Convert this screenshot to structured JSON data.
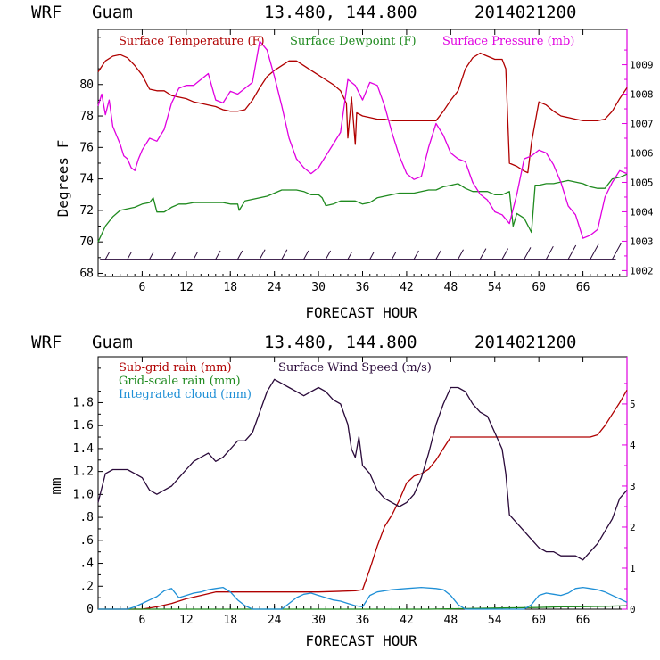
{
  "colors": {
    "temperature": "#b00000",
    "dewpoint": "#1f8a1f",
    "pressure": "#e000e0",
    "wind": "#2a0a3a",
    "subgrid_rain": "#b00000",
    "gridscale_rain": "#1f8a1f",
    "cloud": "#1e8fd6",
    "axis": "#000000"
  },
  "chart_data": [
    {
      "type": "line",
      "header": {
        "model": "WRF",
        "location": "Guam",
        "coords": "13.480, 144.800",
        "init": "2014021200"
      },
      "xlabel": "FORECAST HOUR",
      "ylabel": "Degrees F",
      "xlim": [
        0,
        72
      ],
      "xticks": [
        6,
        12,
        18,
        24,
        30,
        36,
        42,
        48,
        54,
        60,
        66
      ],
      "ylim_left": [
        67.8,
        83.5
      ],
      "yticks_left": [
        68,
        70,
        72,
        74,
        76,
        78,
        80
      ],
      "ylim_right": [
        1001.8,
        1010.2
      ],
      "yticks_right": [
        1002,
        1003,
        1004,
        1005,
        1006,
        1007,
        1008,
        1009
      ],
      "legend": [
        "Surface Temperature (F)",
        "Surface Dewpoint (F)",
        "Surface Pressure (mb)"
      ],
      "series": [
        {
          "name": "Surface Temperature (F)",
          "axis": "left",
          "color_key": "temperature",
          "x": [
            0,
            1,
            2,
            3,
            4,
            5,
            6,
            7,
            8,
            9,
            10,
            11,
            12,
            13,
            14,
            15,
            16,
            17,
            18,
            19,
            20,
            21,
            22,
            23,
            24,
            25,
            26,
            27,
            28,
            29,
            30,
            31,
            32,
            33,
            33.8,
            34,
            34.5,
            35,
            35.2,
            36,
            37,
            38,
            39,
            40,
            41,
            42,
            43,
            44,
            45,
            46,
            47,
            48,
            49,
            50,
            51,
            52,
            53,
            54,
            55,
            55.5,
            56,
            57,
            58,
            58.5,
            59,
            60,
            61,
            62,
            63,
            64,
            65,
            66,
            67,
            68,
            69,
            70,
            71,
            72
          ],
          "y": [
            80.8,
            81.5,
            81.8,
            81.9,
            81.7,
            81.2,
            80.6,
            79.7,
            79.6,
            79.6,
            79.3,
            79.2,
            79.1,
            78.9,
            78.8,
            78.7,
            78.6,
            78.4,
            78.3,
            78.3,
            78.4,
            79.0,
            79.8,
            80.5,
            80.9,
            81.2,
            81.5,
            81.5,
            81.2,
            80.9,
            80.6,
            80.3,
            80.0,
            79.6,
            78.8,
            76.6,
            79.2,
            76.2,
            78.2,
            78.0,
            77.9,
            77.8,
            77.8,
            77.7,
            77.7,
            77.7,
            77.7,
            77.7,
            77.7,
            77.7,
            78.3,
            79.0,
            79.6,
            81.0,
            81.7,
            82.0,
            81.8,
            81.6,
            81.6,
            81.0,
            75.0,
            74.8,
            74.5,
            74.4,
            76.3,
            78.9,
            78.7,
            78.3,
            78.0,
            77.9,
            77.8,
            77.7,
            77.7,
            77.7,
            77.8,
            78.3,
            79.1,
            79.8
          ]
        },
        {
          "name": "Surface Dewpoint (F)",
          "axis": "left",
          "color_key": "dewpoint",
          "x": [
            0,
            1,
            2,
            3,
            4,
            5,
            6,
            7,
            7.5,
            8,
            9,
            10,
            11,
            12,
            13,
            14,
            15,
            16,
            17,
            18,
            19,
            19.2,
            20,
            21,
            22,
            23,
            24,
            25,
            26,
            27,
            28,
            29,
            30,
            30.5,
            31,
            32,
            33,
            34,
            35,
            36,
            37,
            38,
            39,
            40,
            41,
            42,
            43,
            44,
            45,
            46,
            47,
            48,
            49,
            50,
            51,
            52,
            53,
            54,
            55,
            56,
            56.5,
            57,
            58,
            59,
            59.5,
            60,
            61,
            62,
            63,
            64,
            65,
            66,
            67,
            68,
            69,
            70,
            71,
            72
          ],
          "y": [
            70.0,
            71.0,
            71.6,
            72.0,
            72.1,
            72.2,
            72.4,
            72.5,
            72.8,
            71.9,
            71.9,
            72.2,
            72.4,
            72.4,
            72.5,
            72.5,
            72.5,
            72.5,
            72.5,
            72.4,
            72.4,
            72.0,
            72.6,
            72.7,
            72.8,
            72.9,
            73.1,
            73.3,
            73.3,
            73.3,
            73.2,
            73.0,
            73.0,
            72.8,
            72.3,
            72.4,
            72.6,
            72.6,
            72.6,
            72.4,
            72.5,
            72.8,
            72.9,
            73.0,
            73.1,
            73.1,
            73.1,
            73.2,
            73.3,
            73.3,
            73.5,
            73.6,
            73.7,
            73.4,
            73.2,
            73.2,
            73.2,
            73.0,
            73.0,
            73.2,
            71.0,
            71.8,
            71.5,
            70.6,
            73.6,
            73.6,
            73.7,
            73.7,
            73.8,
            73.9,
            73.8,
            73.7,
            73.5,
            73.4,
            73.4,
            74.0,
            74.1,
            74.3
          ]
        },
        {
          "name": "Surface Pressure (mb)",
          "axis": "right",
          "color_key": "pressure",
          "x": [
            0,
            0.5,
            1,
            1.5,
            2,
            2.5,
            3,
            3.5,
            4,
            4.5,
            5,
            5.5,
            6,
            7,
            8,
            9,
            10,
            11,
            12,
            13,
            14,
            15,
            16,
            17,
            18,
            19,
            20,
            21,
            22,
            23,
            24,
            25,
            26,
            27,
            28,
            29,
            30,
            31,
            32,
            33,
            34,
            35,
            36,
            37,
            38,
            39,
            40,
            41,
            42,
            43,
            44,
            45,
            46,
            47,
            48,
            49,
            50,
            51,
            52,
            53,
            54,
            55,
            56,
            57,
            58,
            59,
            60,
            61,
            62,
            63,
            64,
            65,
            66,
            67,
            68,
            69,
            70,
            71,
            72
          ],
          "y": [
            1007.6,
            1008.0,
            1007.3,
            1007.8,
            1006.9,
            1006.6,
            1006.3,
            1005.9,
            1005.8,
            1005.5,
            1005.4,
            1005.8,
            1006.1,
            1006.5,
            1006.4,
            1006.8,
            1007.7,
            1008.2,
            1008.3,
            1008.3,
            1008.5,
            1008.7,
            1007.8,
            1007.7,
            1008.1,
            1008.0,
            1008.2,
            1008.4,
            1009.8,
            1009.5,
            1008.6,
            1007.6,
            1006.5,
            1005.8,
            1005.5,
            1005.3,
            1005.5,
            1005.9,
            1006.3,
            1006.7,
            1008.5,
            1008.3,
            1007.8,
            1008.4,
            1008.3,
            1007.6,
            1006.7,
            1005.9,
            1005.3,
            1005.1,
            1005.2,
            1006.2,
            1007.0,
            1006.6,
            1006.0,
            1005.8,
            1005.7,
            1005.0,
            1004.6,
            1004.4,
            1004.0,
            1003.9,
            1003.6,
            1004.6,
            1005.8,
            1005.9,
            1006.1,
            1006.0,
            1005.6,
            1005.0,
            1004.2,
            1003.9,
            1003.1,
            1003.2,
            1003.4,
            1004.5,
            1005.0,
            1005.4,
            1005.3
          ]
        }
      ],
      "wind_barbs": {
        "hours": [
          1,
          4,
          7,
          10,
          13,
          16,
          19,
          22,
          25,
          28,
          31,
          34,
          37,
          40,
          43,
          46,
          49,
          52,
          55,
          58,
          61,
          64,
          67,
          70
        ],
        "speed": [
          2,
          2,
          2,
          2,
          2,
          3,
          3,
          4,
          4,
          3,
          3,
          2,
          2,
          2,
          3,
          3,
          4,
          5,
          5,
          6,
          7,
          8,
          9,
          10
        ]
      }
    },
    {
      "type": "line",
      "header": {
        "model": "WRF",
        "location": "Guam",
        "coords": "13.480, 144.800",
        "init": "2014021200"
      },
      "xlabel": "FORECAST HOUR",
      "ylabel": "mm",
      "xlim": [
        0,
        72
      ],
      "xticks": [
        6,
        12,
        18,
        24,
        30,
        36,
        42,
        48,
        54,
        60,
        66
      ],
      "ylim_left": [
        0,
        2.2
      ],
      "yticks_left": [
        0,
        0.2,
        0.4,
        0.6,
        0.8,
        1.0,
        1.2,
        1.4,
        1.6,
        1.8
      ],
      "ytick_labels_left": [
        "0",
        ".2",
        ".4",
        ".6",
        ".8",
        "1.0",
        "1.2",
        "1.4",
        "1.6",
        "1.8"
      ],
      "ylim_right": [
        0,
        6.15
      ],
      "yticks_right": [
        0,
        1,
        2,
        3,
        4,
        5
      ],
      "legend": [
        "Sub-grid rain (mm)",
        "Surface Wind Speed (m/s)",
        "Grid-scale rain (mm)",
        "Integrated cloud (mm)"
      ],
      "series": [
        {
          "name": "Sub-grid rain (mm)",
          "axis": "left",
          "color_key": "subgrid_rain",
          "x": [
            0,
            6,
            8,
            10,
            12,
            14,
            16,
            18,
            24,
            30,
            35,
            36,
            37,
            38,
            39,
            40,
            41,
            42,
            43,
            44,
            45,
            46,
            47,
            48,
            54,
            60,
            66,
            67,
            68,
            69,
            70,
            71,
            72
          ],
          "y": [
            0,
            0,
            0.02,
            0.05,
            0.09,
            0.12,
            0.15,
            0.15,
            0.15,
            0.15,
            0.16,
            0.17,
            0.35,
            0.55,
            0.72,
            0.82,
            0.95,
            1.1,
            1.16,
            1.18,
            1.22,
            1.3,
            1.4,
            1.5,
            1.5,
            1.5,
            1.5,
            1.5,
            1.52,
            1.6,
            1.7,
            1.8,
            1.91
          ]
        },
        {
          "name": "Grid-scale rain (mm)",
          "axis": "left",
          "color_key": "gridscale_rain",
          "x": [
            0,
            30,
            45,
            50,
            55,
            60,
            63,
            66,
            69,
            72
          ],
          "y": [
            0,
            0,
            0,
            0.005,
            0.01,
            0.015,
            0.02,
            0.022,
            0.025,
            0.03
          ]
        },
        {
          "name": "Integrated cloud (mm)",
          "axis": "left",
          "color_key": "cloud",
          "x": [
            0,
            4,
            5,
            6,
            7,
            8,
            9,
            10,
            11,
            12,
            13,
            14,
            15,
            16,
            17,
            18,
            19,
            20,
            21,
            23,
            25,
            26,
            27,
            28,
            29,
            30,
            31,
            32,
            33,
            34,
            35,
            36,
            37,
            38,
            40,
            42,
            44,
            46,
            47,
            48,
            49,
            50,
            52,
            54,
            56,
            58,
            59,
            60,
            61,
            62,
            63,
            64,
            65,
            66,
            67,
            68,
            69,
            70,
            71,
            72
          ],
          "y": [
            0,
            0,
            0.02,
            0.05,
            0.08,
            0.11,
            0.16,
            0.18,
            0.1,
            0.12,
            0.14,
            0.15,
            0.17,
            0.18,
            0.19,
            0.15,
            0.08,
            0.03,
            0,
            0,
            0,
            0.05,
            0.1,
            0.13,
            0.14,
            0.12,
            0.1,
            0.08,
            0.07,
            0.05,
            0.03,
            0.02,
            0.12,
            0.15,
            0.17,
            0.18,
            0.19,
            0.18,
            0.17,
            0.12,
            0.04,
            0,
            0,
            0,
            0,
            0,
            0.04,
            0.12,
            0.14,
            0.13,
            0.12,
            0.14,
            0.18,
            0.19,
            0.18,
            0.17,
            0.15,
            0.12,
            0.09,
            0.06
          ]
        },
        {
          "name": "Surface Wind Speed (m/s)",
          "axis": "right",
          "color_key": "wind",
          "x": [
            0,
            1,
            2,
            3,
            4,
            5,
            6,
            7,
            8,
            9,
            10,
            11,
            12,
            13,
            14,
            15,
            16,
            17,
            18,
            19,
            20,
            21,
            22,
            23,
            24,
            25,
            26,
            27,
            28,
            29,
            30,
            31,
            32,
            33,
            34,
            34.5,
            35,
            35.5,
            36,
            37,
            38,
            39,
            40,
            41,
            42,
            43,
            44,
            45,
            46,
            47,
            48,
            49,
            50,
            51,
            52,
            53,
            54,
            55,
            55.5,
            56,
            57,
            58,
            59,
            60,
            61,
            62,
            63,
            64,
            65,
            66,
            67,
            68,
            69,
            70,
            71,
            72
          ],
          "y": [
            2.6,
            3.3,
            3.4,
            3.4,
            3.4,
            3.3,
            3.2,
            2.9,
            2.8,
            2.9,
            3.0,
            3.2,
            3.4,
            3.6,
            3.7,
            3.8,
            3.6,
            3.7,
            3.9,
            4.1,
            4.1,
            4.3,
            4.8,
            5.3,
            5.6,
            5.5,
            5.4,
            5.3,
            5.2,
            5.3,
            5.4,
            5.3,
            5.1,
            5.0,
            4.5,
            3.9,
            3.7,
            4.2,
            3.5,
            3.3,
            2.9,
            2.7,
            2.6,
            2.5,
            2.6,
            2.8,
            3.2,
            3.8,
            4.5,
            5.0,
            5.4,
            5.4,
            5.3,
            5.0,
            4.8,
            4.7,
            4.3,
            3.9,
            3.3,
            2.3,
            2.1,
            1.9,
            1.7,
            1.5,
            1.4,
            1.4,
            1.3,
            1.3,
            1.3,
            1.2,
            1.4,
            1.6,
            1.9,
            2.2,
            2.7,
            2.9
          ]
        }
      ]
    }
  ]
}
